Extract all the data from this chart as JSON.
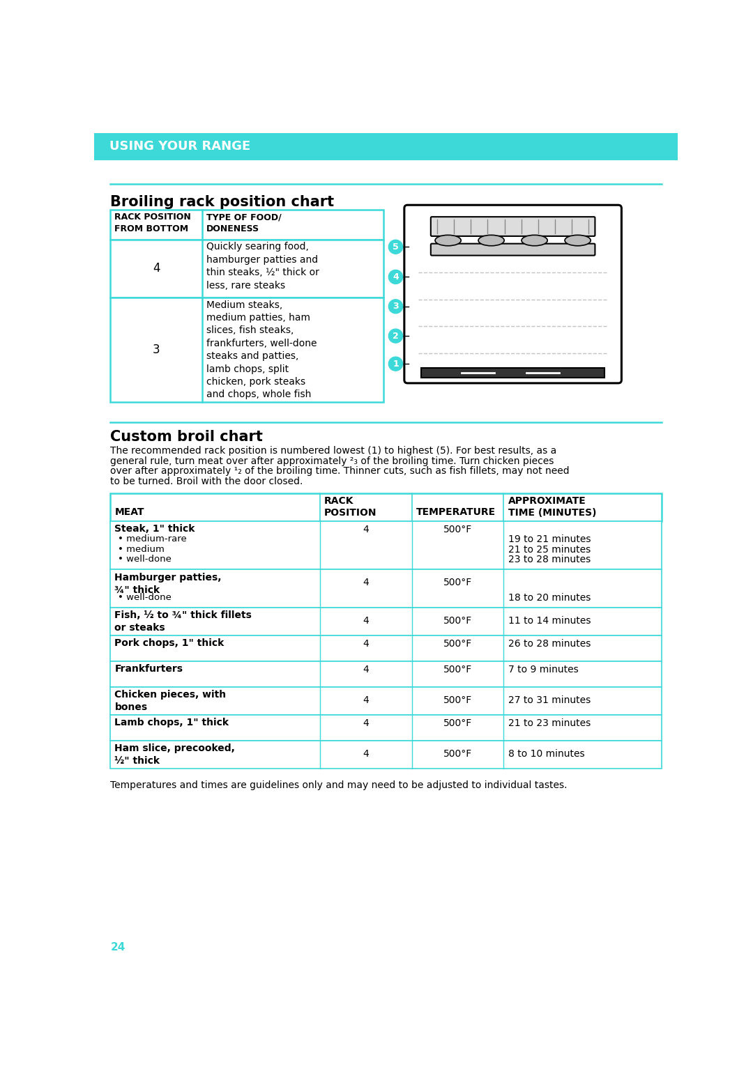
{
  "page_bg": "#ffffff",
  "cyan": "#3DD9D9",
  "header_text": "USING YOUR RANGE",
  "section1_title": "Broiling rack position chart",
  "section2_title": "Custom broil chart",
  "custom_para1": "The recommended rack position is numbered lowest (1) to highest (5). For best results, as a",
  "custom_para2": "general rule, turn meat over after approximately ²₃ of the broiling time. Turn chicken pieces",
  "custom_para3": "over after approximately ¹₂ of the broiling time. Thinner cuts, such as fish fillets, may not need",
  "custom_para4": "to be turned. Broil with the door closed.",
  "footer_note": "Temperatures and times are guidelines only and may need to be adjusted to individual tastes.",
  "page_num": "24",
  "broil_row1_pos": "4",
  "broil_row1_desc": "Quickly searing food,\nhamburger patties and\nthin steaks, ½\" thick or\nless, rare steaks",
  "broil_row2_pos": "3",
  "broil_row2_desc": "Medium steaks,\nmedium patties, ham\nslices, fish steaks,\nfrankfurters, well-done\nsteaks and patties,\nlamb chops, split\nchicken, pork steaks\nand chops, whole fish",
  "tbl_hdr": [
    "MEAT",
    "RACK\nPOSITION",
    "TEMPERATURE",
    "APPROXIMATE\nTIME (MINUTES)"
  ],
  "rows": [
    {
      "meat": "Steak, 1\" thick",
      "pos": "4",
      "temp": "500°F",
      "time": "",
      "subs": [
        [
          "• medium-rare",
          "19 to 21 minutes"
        ],
        [
          "• medium",
          "21 to 25 minutes"
        ],
        [
          "• well-done",
          "23 to 28 minutes"
        ]
      ]
    },
    {
      "meat": "Hamburger patties,\n¾\" thick",
      "pos": "4",
      "temp": "500°F",
      "time": "",
      "subs": [
        [
          "• well-done",
          "18 to 20 minutes"
        ]
      ]
    },
    {
      "meat": "Fish, ½ to ¾\" thick fillets\nor steaks",
      "pos": "4",
      "temp": "500°F",
      "time": "11 to 14 minutes",
      "subs": []
    },
    {
      "meat": "Pork chops, 1\" thick",
      "pos": "4",
      "temp": "500°F",
      "time": "26 to 28 minutes",
      "subs": []
    },
    {
      "meat": "Frankfurters",
      "pos": "4",
      "temp": "500°F",
      "time": "7 to 9 minutes",
      "subs": []
    },
    {
      "meat": "Chicken pieces, with\nbones",
      "pos": "4",
      "temp": "500°F",
      "time": "27 to 31 minutes",
      "subs": []
    },
    {
      "meat": "Lamb chops, 1\" thick",
      "pos": "4",
      "temp": "500°F",
      "time": "21 to 23 minutes",
      "subs": []
    },
    {
      "meat": "Ham slice, precooked,\n½\" thick",
      "pos": "4",
      "temp": "500°F",
      "time": "8 to 10 minutes",
      "subs": []
    }
  ]
}
